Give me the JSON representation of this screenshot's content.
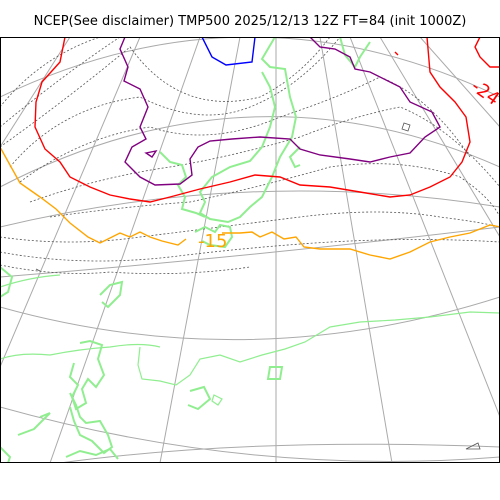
{
  "title": "NCEP(See disclaimer) TMP500 2025/12/13 12Z FT=84 (init 1000Z)",
  "contour_labels": {
    "red_value": "-24",
    "orange_value": "-15"
  },
  "colors": {
    "background": "#ffffff",
    "grid": "#aaaaaa",
    "coastline": "#90ee90",
    "isotherm_dotted": "#555555",
    "contour_red": "#ff0000",
    "contour_purple": "#800080",
    "contour_blue": "#0000ff",
    "contour_orange": "#ffa500",
    "frame": "#000000"
  }
}
